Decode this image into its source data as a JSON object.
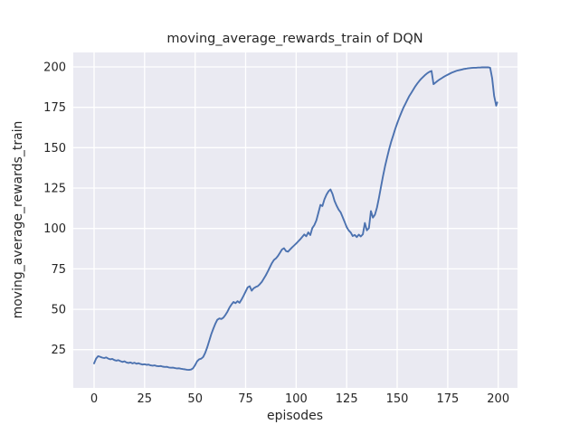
{
  "chart_data": {
    "type": "line",
    "title": "moving_average_rewards_train of DQN",
    "xlabel": "episodes",
    "ylabel": "moving_average_rewards_train",
    "x_tick_labels": [
      "0",
      "25",
      "50",
      "75",
      "100",
      "125",
      "150",
      "175",
      "200"
    ],
    "y_tick_labels": [
      "25",
      "50",
      "75",
      "100",
      "125",
      "150",
      "175",
      "200"
    ],
    "xlim": [
      -12,
      227
    ],
    "ylim": [
      1,
      209
    ],
    "grid": true,
    "legend": "none",
    "line_color": "#4c72b0",
    "plot_background": "#eaeaf2",
    "grid_color": "#ffffff",
    "figure_background": "#ffffff",
    "text_color": "#262626",
    "series": [
      {
        "name": "moving_average_rewards_train",
        "x": [
          0,
          1,
          2,
          3,
          4,
          5,
          6,
          7,
          8,
          9,
          10,
          11,
          12,
          13,
          14,
          15,
          16,
          17,
          18,
          19,
          20,
          21,
          22,
          23,
          24,
          25,
          26,
          27,
          28,
          29,
          30,
          31,
          32,
          33,
          34,
          35,
          36,
          37,
          38,
          39,
          40,
          41,
          42,
          43,
          44,
          45,
          46,
          47,
          48,
          49,
          50,
          51,
          52,
          53,
          54,
          55,
          56,
          57,
          58,
          59,
          60,
          61,
          62,
          63,
          64,
          65,
          66,
          67,
          68,
          69,
          70,
          71,
          72,
          73,
          74,
          75,
          76,
          77,
          78,
          79,
          80,
          81,
          82,
          83,
          84,
          85,
          86,
          87,
          88,
          89,
          90,
          91,
          92,
          93,
          94,
          95,
          96,
          97,
          98,
          99,
          100,
          101,
          102,
          103,
          104,
          105,
          106,
          107,
          108,
          109,
          110,
          111,
          112,
          113,
          114,
          115,
          116,
          117,
          118,
          119,
          120,
          121,
          122,
          123,
          124,
          125,
          126,
          127,
          128,
          129,
          130,
          131,
          132,
          133,
          134,
          135,
          136,
          137,
          138,
          139,
          140,
          141,
          142,
          143,
          144,
          145,
          146,
          147,
          148,
          149,
          150,
          151,
          152,
          153,
          154,
          155,
          156,
          157,
          158,
          159,
          160,
          161,
          162,
          163,
          164,
          165,
          166,
          167,
          168,
          169,
          170,
          171,
          172,
          173,
          174,
          175,
          176,
          177,
          178,
          179,
          180,
          181,
          182,
          183,
          184,
          185,
          186,
          187,
          188,
          189,
          190,
          191,
          192,
          193,
          194,
          195,
          196,
          197,
          198,
          199,
          199.5
        ],
        "y": [
          16.5,
          19.5,
          21.0,
          20.6,
          20.1,
          19.8,
          20.2,
          19.5,
          19.0,
          19.3,
          18.6,
          18.2,
          18.5,
          17.9,
          17.4,
          17.8,
          17.1,
          16.8,
          17.1,
          16.5,
          16.9,
          16.3,
          16.6,
          16.1,
          15.8,
          16.0,
          15.6,
          15.8,
          15.3,
          15.1,
          15.3,
          14.9,
          14.7,
          14.9,
          14.5,
          14.3,
          14.4,
          14.0,
          13.8,
          13.9,
          13.6,
          13.4,
          13.5,
          13.2,
          13.0,
          12.8,
          12.6,
          12.5,
          12.7,
          13.5,
          15.5,
          17.8,
          19.0,
          19.4,
          20.5,
          23.0,
          26.5,
          30.5,
          34.5,
          38.0,
          41.0,
          43.5,
          44.3,
          44.0,
          44.8,
          46.5,
          48.5,
          51.0,
          53.0,
          54.5,
          53.8,
          55.0,
          54.0,
          56.0,
          58.5,
          61.0,
          63.5,
          64.3,
          61.5,
          63.0,
          63.8,
          64.3,
          65.5,
          67.0,
          69.0,
          71.0,
          73.5,
          76.0,
          78.5,
          80.5,
          81.5,
          83.0,
          85.0,
          87.0,
          87.8,
          86.0,
          85.6,
          87.0,
          88.3,
          89.5,
          90.7,
          92.0,
          93.3,
          94.8,
          96.3,
          95.2,
          97.6,
          95.9,
          100.2,
          102.1,
          105.0,
          109.6,
          114.6,
          113.9,
          118.0,
          121.0,
          123.0,
          124.2,
          121.3,
          117.0,
          114.2,
          111.7,
          110.0,
          107.1,
          104.0,
          100.9,
          98.8,
          97.5,
          95.3,
          96.0,
          94.7,
          96.2,
          95.1,
          96.4,
          103.4,
          98.8,
          100.3,
          110.8,
          106.7,
          108.6,
          113.0,
          119.0,
          126.0,
          132.5,
          138.5,
          144.0,
          149.0,
          153.5,
          157.5,
          161.5,
          165.0,
          168.5,
          171.5,
          174.5,
          177.0,
          179.5,
          182.0,
          184.0,
          186.0,
          188.0,
          189.8,
          191.4,
          192.8,
          194.0,
          195.2,
          196.2,
          197.0,
          197.5,
          189.3,
          190.3,
          191.3,
          192.2,
          193.0,
          193.8,
          194.5,
          195.2,
          195.8,
          196.4,
          196.9,
          197.4,
          197.8,
          198.1,
          198.4,
          198.7,
          198.9,
          199.1,
          199.3,
          199.4,
          199.5,
          199.5,
          199.6,
          199.6,
          199.7,
          199.7,
          199.7,
          199.8,
          199.5,
          193.0,
          182.0,
          176.0,
          178.0
        ]
      }
    ]
  }
}
